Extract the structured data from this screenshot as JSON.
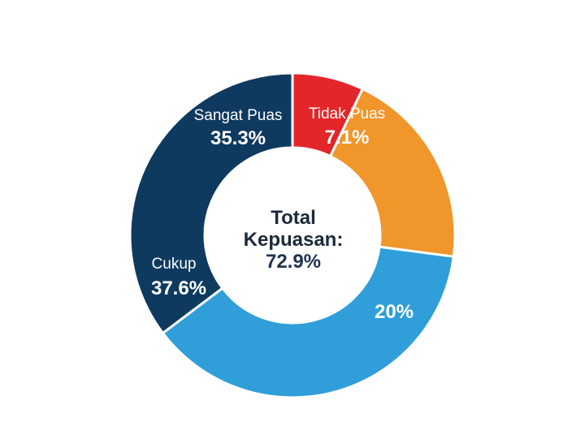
{
  "chart_data": {
    "type": "pie",
    "donut": true,
    "segments": [
      {
        "label": "Tidak Puas",
        "value_label": "7.1%",
        "value": 7.1,
        "color": "#e3262a"
      },
      {
        "label": "",
        "value_label": "20%",
        "value": 20,
        "color": "#f0962a"
      },
      {
        "label": "Cukup",
        "value_label": "37.6%",
        "value": 37.6,
        "color": "#2f9ed9"
      },
      {
        "label": "Sangat Puas",
        "value_label": "35.3%",
        "value": 35.3,
        "color": "#0f3a5f"
      }
    ],
    "center": {
      "line1": "Total",
      "line2": "Kepuasan:",
      "value": "72.9%"
    }
  }
}
